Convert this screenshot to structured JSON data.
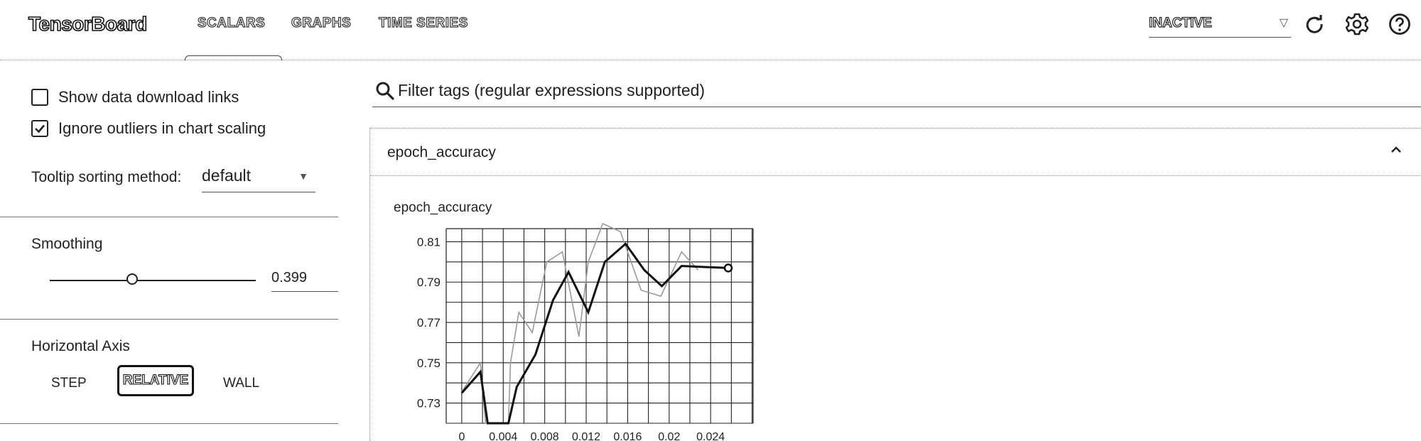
{
  "app": {
    "title": "TensorBoard"
  },
  "nav": {
    "tabs": [
      {
        "label": "SCALARS"
      },
      {
        "label": "GRAPHS"
      },
      {
        "label": "TIME SERIES"
      }
    ],
    "active_tab": "SCALARS"
  },
  "header": {
    "run_status": "INACTIVE",
    "icons": [
      "refresh-icon",
      "settings-icon",
      "help-icon"
    ]
  },
  "sidebar": {
    "show_download_links": {
      "label": "Show data download links",
      "checked": false
    },
    "ignore_outliers": {
      "label": "Ignore outliers in chart scaling",
      "checked": true
    },
    "tooltip_sorting": {
      "label": "Tooltip sorting method:",
      "value": "default"
    },
    "smoothing": {
      "label": "Smoothing",
      "value": "0.399",
      "level": 0.399
    },
    "horizontal_axis": {
      "label": "Horizontal Axis",
      "options": [
        "STEP",
        "RELATIVE",
        "WALL"
      ],
      "selected": "RELATIVE"
    }
  },
  "main": {
    "filter": {
      "placeholder": "Filter tags (regular expressions supported)"
    },
    "card": {
      "title": "epoch_accuracy"
    },
    "chart_title": "epoch_accuracy"
  },
  "chart_data": {
    "type": "line",
    "title": "epoch_accuracy",
    "xlabel": "",
    "ylabel": "",
    "xlim": [
      -0.0015,
      0.0281
    ],
    "ylim": [
      0.72,
      0.8165
    ],
    "x_ticks": [
      "0",
      "0.004",
      "0.008",
      "0.012",
      "0.016",
      "0.02",
      "0.024"
    ],
    "x_tick_values": [
      0,
      0.004,
      0.008,
      0.012,
      0.016,
      0.02,
      0.024
    ],
    "y_ticks": [
      "0.81",
      "0.79",
      "0.77",
      "0.75",
      "0.73"
    ],
    "y_tick_values": [
      0.81,
      0.79,
      0.77,
      0.75,
      0.73
    ],
    "grid": true,
    "series": [
      {
        "x": [
          0,
          0.0018,
          0.0023,
          0.0045,
          0.0047,
          0.0055,
          0.0068,
          0.0082,
          0.0097,
          0.0113,
          0.0122,
          0.0136,
          0.0153,
          0.0173,
          0.0192,
          0.0212,
          0.0228
        ],
        "values": [
          0.7355,
          0.75,
          0.72,
          0.72,
          0.75,
          0.775,
          0.765,
          0.8,
          0.805,
          0.763,
          0.8,
          0.819,
          0.815,
          0.786,
          0.783,
          0.805,
          0.796
        ],
        "style": "raw"
      },
      {
        "x": [
          0,
          0.0018,
          0.0025,
          0.0045,
          0.0053,
          0.0071,
          0.0088,
          0.0103,
          0.0122,
          0.0138,
          0.0158,
          0.0176,
          0.0193,
          0.0212,
          0.0234,
          0.0257
        ],
        "values": [
          0.735,
          0.7455,
          0.72,
          0.72,
          0.738,
          0.754,
          0.781,
          0.795,
          0.775,
          0.8,
          0.809,
          0.796,
          0.788,
          0.798,
          0.7975,
          0.797
        ],
        "style": "smoothed"
      }
    ]
  }
}
